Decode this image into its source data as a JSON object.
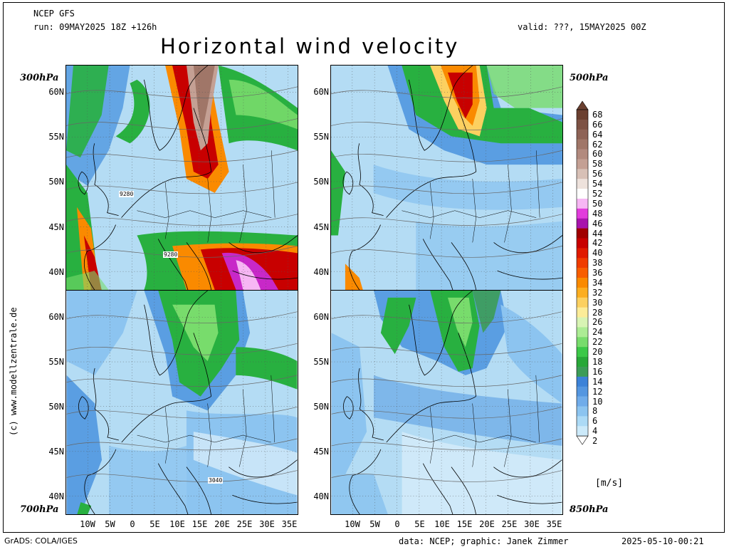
{
  "header": {
    "model": "NCEP GFS",
    "run": "run: 09MAY2025 18Z +126h",
    "valid": "valid: ???, 15MAY2025 00Z"
  },
  "title": "Horizontal wind velocity",
  "levels": {
    "top_left": "300hPa",
    "top_right": "500hPa",
    "bottom_left": "700hPa",
    "bottom_right": "850hPa"
  },
  "lat_labels": [
    "60N",
    "55N",
    "50N",
    "45N",
    "40N"
  ],
  "lon_labels": [
    "10W",
    "5W",
    "0",
    "5E",
    "10E",
    "15E",
    "20E",
    "25E",
    "30E",
    "35E"
  ],
  "contour_labels": {
    "top_left_a": "9280",
    "top_left_b": "9280",
    "bottom_left": "3040"
  },
  "colorbar": {
    "values": [
      68,
      66,
      64,
      62,
      60,
      58,
      56,
      54,
      52,
      50,
      48,
      46,
      44,
      42,
      40,
      38,
      36,
      34,
      32,
      30,
      28,
      26,
      24,
      22,
      20,
      18,
      16,
      14,
      12,
      10,
      8,
      6,
      4,
      2
    ],
    "colors": [
      "#6b4030",
      "#7d5244",
      "#8e6356",
      "#a07668",
      "#b28a7e",
      "#c4a094",
      "#d8c0b6",
      "#eee2dc",
      "#ffffff",
      "#f7b6f4",
      "#e23cdc",
      "#a814ac",
      "#a00000",
      "#c80000",
      "#e01a00",
      "#f03c00",
      "#f85e00",
      "#fa8a00",
      "#fcae20",
      "#fcd060",
      "#fcec98",
      "#d8f4b4",
      "#acec94",
      "#78dc6c",
      "#3cc848",
      "#28a838",
      "#3c9c58",
      "#3c82d8",
      "#5496e0",
      "#70acea",
      "#8cc4f0",
      "#acdaf6",
      "#cceafa",
      "#ffffff"
    ],
    "unit": "[m/s]"
  },
  "credits": {
    "vertical": "(c) www.modellzentrale.de",
    "grads": "GrADS: COLA/IGES",
    "data": "data: NCEP; graphic: Janek Zimmer",
    "timestamp": "2025-05-10-00:21"
  }
}
